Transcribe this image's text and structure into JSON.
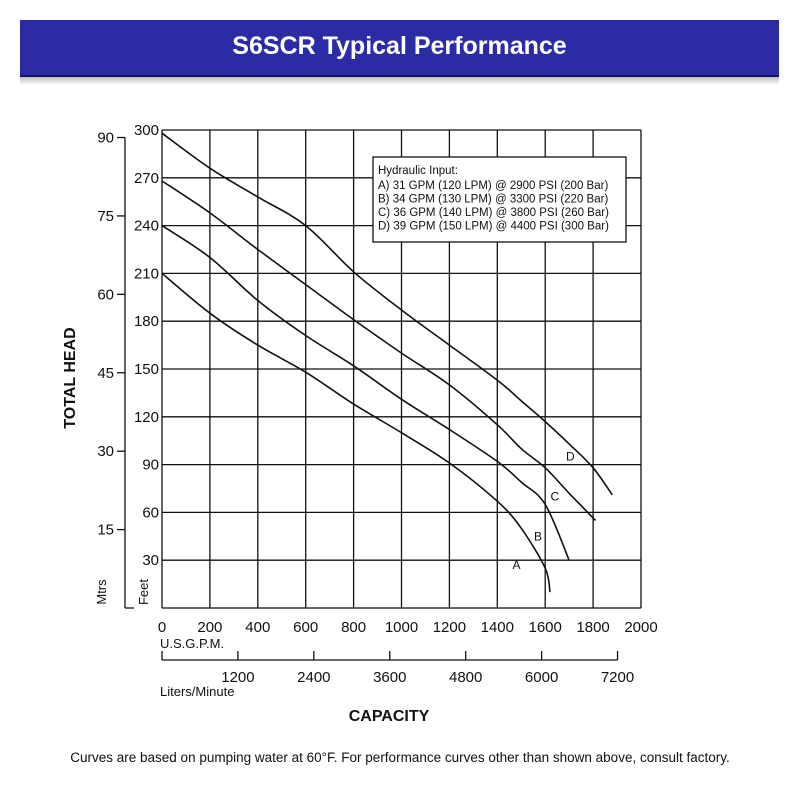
{
  "header": {
    "title": "S6SCR Typical Performance"
  },
  "footnote": "Curves are based on pumping water at 60°F. For performance curves other than shown above, consult factory.",
  "chart_data": {
    "type": "line",
    "title": "S6SCR Typical Performance",
    "xlabel": "CAPACITY",
    "ylabel": "TOTAL HEAD",
    "xlim": [
      0,
      2000
    ],
    "ylim": [
      0,
      300
    ],
    "grid": true,
    "x_ticks": [
      "0",
      "200",
      "400",
      "600",
      "800",
      "1000",
      "1200",
      "1400",
      "1600",
      "1800",
      "2000"
    ],
    "x_unit": "U.S.G.P.M.",
    "x2_ticks": [
      {
        "value": 1200,
        "label": "1200"
      },
      {
        "value": 2400,
        "label": "2400"
      },
      {
        "value": 3600,
        "label": "3600"
      },
      {
        "value": 4800,
        "label": "4800"
      },
      {
        "value": 6000,
        "label": "6000"
      },
      {
        "value": 7200,
        "label": "7200"
      }
    ],
    "x2_unit": "Liters/Minute",
    "y_ticks": [
      "30",
      "60",
      "90",
      "120",
      "150",
      "180",
      "210",
      "240",
      "270",
      "300"
    ],
    "y_unit": "Feet",
    "y2_ticks": [
      {
        "value": 15,
        "label": "15"
      },
      {
        "value": 30,
        "label": "30"
      },
      {
        "value": 45,
        "label": "45"
      },
      {
        "value": 60,
        "label": "60"
      },
      {
        "value": 75,
        "label": "75"
      },
      {
        "value": 90,
        "label": "90"
      }
    ],
    "y2_unit": "Mtrs",
    "legend": {
      "placement": "top-right",
      "title": "Hydraulic Input:",
      "entries": [
        "A) 31 GPM (120 LPM) @ 2900 PSI (200 Bar)",
        "B) 34 GPM (130 LPM) @ 3300 PSI (220 Bar)",
        "C) 36 GPM (140 LPM) @ 3800 PSI (260 Bar)",
        "D) 39 GPM (150 LPM) @ 4400 PSI (300 Bar)"
      ]
    },
    "series": [
      {
        "name": "A",
        "label_at": [
          1480,
          27
        ],
        "x": [
          0,
          200,
          400,
          600,
          800,
          1000,
          1200,
          1400,
          1500,
          1600,
          1620
        ],
        "y": [
          210,
          185,
          165,
          148,
          128,
          110,
          91,
          67,
          50,
          25,
          10
        ]
      },
      {
        "name": "B",
        "label_at": [
          1570,
          45
        ],
        "x": [
          0,
          200,
          400,
          600,
          800,
          1000,
          1200,
          1400,
          1500,
          1600,
          1700
        ],
        "y": [
          240,
          220,
          193,
          171,
          152,
          131,
          112,
          92,
          79,
          65,
          30
        ]
      },
      {
        "name": "C",
        "label_at": [
          1640,
          70
        ],
        "x": [
          0,
          200,
          400,
          600,
          800,
          1000,
          1200,
          1400,
          1500,
          1600,
          1700,
          1810
        ],
        "y": [
          268,
          248,
          225,
          203,
          181,
          160,
          140,
          115,
          100,
          88,
          72,
          55
        ]
      },
      {
        "name": "D",
        "label_at": [
          1705,
          95
        ],
        "x": [
          0,
          200,
          400,
          600,
          800,
          1000,
          1200,
          1400,
          1500,
          1600,
          1700,
          1800,
          1880
        ],
        "y": [
          298,
          276,
          258,
          240,
          211,
          187,
          165,
          143,
          130,
          117,
          103,
          88,
          71
        ]
      }
    ]
  }
}
